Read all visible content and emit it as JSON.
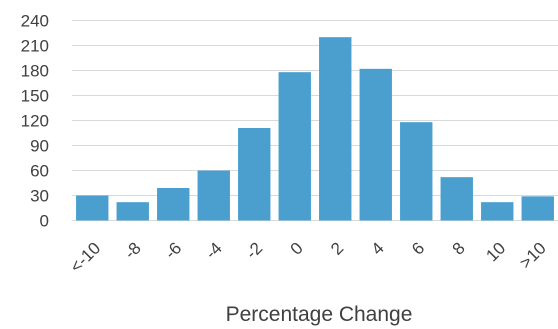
{
  "chart_data": {
    "type": "bar",
    "title": "",
    "xlabel": "Percentage Change",
    "ylabel": "",
    "categories": [
      "<-10",
      "-8",
      "-6",
      "-4",
      "-2",
      "0",
      "2",
      "4",
      "6",
      "8",
      "10",
      ">10"
    ],
    "values": [
      30,
      22,
      39,
      60,
      111,
      178,
      220,
      182,
      118,
      52,
      22,
      29
    ],
    "ylim": [
      0,
      240
    ],
    "yticks": [
      0,
      30,
      60,
      90,
      120,
      150,
      180,
      210,
      240
    ],
    "grid": true,
    "legend": "none",
    "bar_color": "#4a9fcf"
  }
}
